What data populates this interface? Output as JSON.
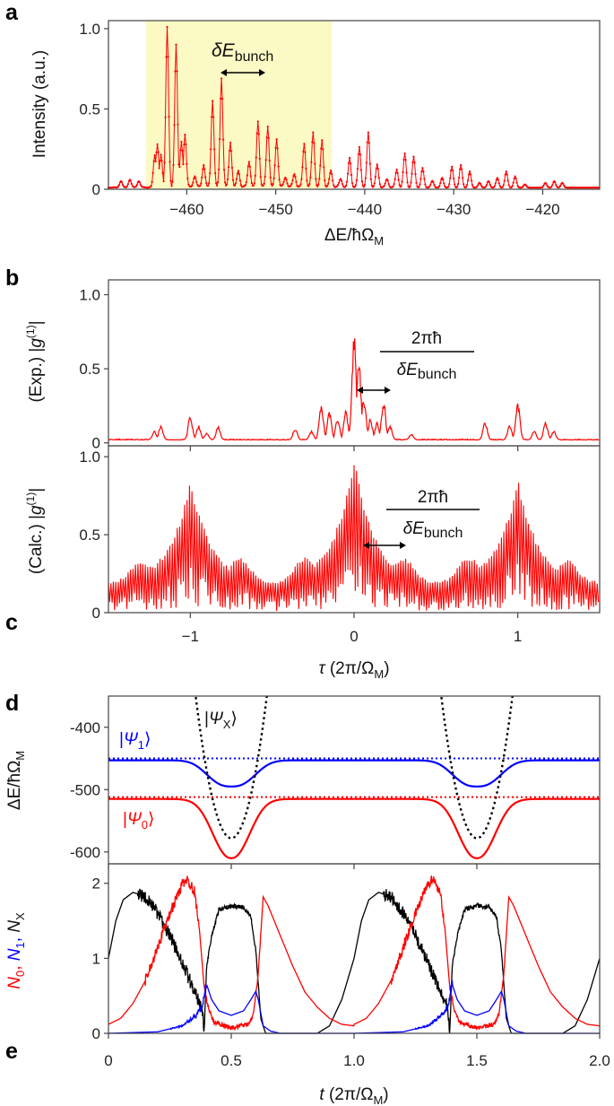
{
  "colors": {
    "red": "#ff0000",
    "blue": "#0000ff",
    "black": "#000000",
    "highlight": "#fbf9c4"
  },
  "panel_letters": {
    "a": "a",
    "b": "b",
    "c": "c",
    "d": "d",
    "e": "e"
  },
  "chart_data": [
    {
      "panel": "a",
      "type": "line",
      "markers": true,
      "xlabel": {
        "main": "ΔE/ħΩ",
        "sub": "M"
      },
      "ylabel": "Intensity (a.u.)",
      "xlim": [
        -468.8,
        -413.6
      ],
      "ylim": [
        0,
        1.05
      ],
      "xticks": [
        -460,
        -450,
        -440,
        -430,
        -420
      ],
      "yticks": [
        {
          "v": 0,
          "t": "0"
        },
        {
          "v": 0.5,
          "t": "0.5"
        },
        {
          "v": 1.0,
          "t": "1.0"
        }
      ],
      "highlight_range": [
        -464.6,
        -443.7
      ],
      "annotation": {
        "main": "δE",
        "sub": "bunch"
      },
      "peaks": [
        [
          -467.4,
          0.04
        ],
        [
          -466.4,
          0.05
        ],
        [
          -465.4,
          0.04
        ],
        [
          -463.6,
          0.2
        ],
        [
          -463.3,
          0.27
        ],
        [
          -462.9,
          0.2
        ],
        [
          -462.2,
          1.0
        ],
        [
          -461.2,
          0.89
        ],
        [
          -460.6,
          0.28
        ],
        [
          -460.2,
          0.33
        ],
        [
          -459.1,
          0.07
        ],
        [
          -458.1,
          0.14
        ],
        [
          -457.1,
          0.54
        ],
        [
          -456.1,
          0.68
        ],
        [
          -455.1,
          0.28
        ],
        [
          -454.2,
          0.1
        ],
        [
          -453.0,
          0.16
        ],
        [
          -452.0,
          0.41
        ],
        [
          -450.9,
          0.38
        ],
        [
          -449.9,
          0.3
        ],
        [
          -448.9,
          0.06
        ],
        [
          -447.9,
          0.08
        ],
        [
          -446.8,
          0.27
        ],
        [
          -445.8,
          0.34
        ],
        [
          -444.8,
          0.29
        ],
        [
          -443.8,
          0.1
        ],
        [
          -442.7,
          0.05
        ],
        [
          -441.7,
          0.18
        ],
        [
          -440.6,
          0.25
        ],
        [
          -439.6,
          0.34
        ],
        [
          -438.6,
          0.14
        ],
        [
          -437.5,
          0.05
        ],
        [
          -436.4,
          0.11
        ],
        [
          -435.5,
          0.21
        ],
        [
          -434.5,
          0.19
        ],
        [
          -433.5,
          0.12
        ],
        [
          -432.4,
          0.04
        ],
        [
          -431.3,
          0.06
        ],
        [
          -430.2,
          0.13
        ],
        [
          -429.2,
          0.14
        ],
        [
          -428.2,
          0.1
        ],
        [
          -427.1,
          0.03
        ],
        [
          -426.1,
          0.04
        ],
        [
          -425.1,
          0.06
        ],
        [
          -424.1,
          0.1
        ],
        [
          -423.1,
          0.07
        ],
        [
          -422.0,
          0.02
        ],
        [
          -419.7,
          0.03
        ],
        [
          -418.7,
          0.04
        ],
        [
          -417.8,
          0.03
        ]
      ]
    },
    {
      "panel": "b",
      "type": "line",
      "ylabel": {
        "pre": "(Exp.) |",
        "g": "g",
        "sup": "(1)",
        "post": "|"
      },
      "xlim": [
        -1.5,
        1.5
      ],
      "ylim": [
        -0.02,
        1.1
      ],
      "yticks": [
        {
          "v": 0,
          "t": "0"
        },
        {
          "v": 0.5,
          "t": "0.5"
        },
        {
          "v": 1.0,
          "t": "1.0"
        }
      ],
      "annotation": {
        "num": "2πħ",
        "den_main": "δE",
        "den_sub": "bunch"
      },
      "baseline": 0.02,
      "peaks": [
        [
          -1.22,
          0.06
        ],
        [
          -1.18,
          0.1
        ],
        [
          -1.0,
          0.17
        ],
        [
          -0.95,
          0.1
        ],
        [
          -0.9,
          0.05
        ],
        [
          -0.83,
          0.09
        ],
        [
          -0.36,
          0.08
        ],
        [
          -0.26,
          0.06
        ],
        [
          -0.2,
          0.25
        ],
        [
          -0.15,
          0.2
        ],
        [
          -0.1,
          0.15
        ],
        [
          -0.05,
          0.2
        ],
        [
          0.0,
          0.74
        ],
        [
          0.03,
          0.55
        ],
        [
          0.06,
          0.3
        ],
        [
          0.1,
          0.15
        ],
        [
          0.14,
          0.12
        ],
        [
          0.18,
          0.27
        ],
        [
          0.22,
          0.1
        ],
        [
          0.35,
          0.04
        ],
        [
          0.8,
          0.13
        ],
        [
          0.95,
          0.1
        ],
        [
          1.0,
          0.27
        ],
        [
          1.1,
          0.06
        ],
        [
          1.17,
          0.12
        ],
        [
          1.22,
          0.06
        ]
      ]
    },
    {
      "panel": "c",
      "type": "line",
      "ylabel": {
        "pre": "(Calc.) |",
        "g": "g",
        "sup": "(1)",
        "post": "|"
      },
      "xlabel": {
        "main": "τ",
        "rest": " (2π/Ω",
        "sub": "M",
        "end": ")"
      },
      "xlim": [
        -1.5,
        1.5
      ],
      "ylim": [
        0,
        1.07
      ],
      "xticks": [
        {
          "v": -1,
          "t": "−1"
        },
        {
          "v": 0,
          "t": "0"
        },
        {
          "v": 1,
          "t": "1"
        }
      ],
      "yticks": [
        {
          "v": 0,
          "t": "0"
        },
        {
          "v": 0.5,
          "t": "0.5"
        },
        {
          "v": 1.0,
          "t": "1.0"
        }
      ],
      "annotation": {
        "num": "2πħ",
        "den_main": "δE",
        "den_sub": "bunch"
      },
      "envelope_baseline": 0.2,
      "envelope_peaks": [
        [
          -1.0,
          0.87
        ],
        [
          0.0,
          1.0
        ],
        [
          1.0,
          0.87
        ]
      ],
      "envelope_bumps": [
        [
          -1.3,
          0.34
        ],
        [
          -0.7,
          0.36
        ],
        [
          -0.3,
          0.36
        ],
        [
          0.3,
          0.36
        ],
        [
          0.7,
          0.36
        ],
        [
          1.3,
          0.34
        ]
      ]
    },
    {
      "panel": "d",
      "type": "line",
      "ylabel": {
        "main": "ΔE/ħΩ",
        "sub": "M"
      },
      "xlim": [
        0,
        2.0
      ],
      "ylim": [
        -619,
        -350
      ],
      "yticks": [
        {
          "v": -400,
          "t": "-400"
        },
        {
          "v": -500,
          "t": "-500"
        },
        {
          "v": -600,
          "t": "-600"
        }
      ],
      "series": [
        {
          "name": {
            "pre": "|",
            "main": "Ψ",
            "sub": "1",
            "post": "⟩"
          },
          "color": "#0000ff",
          "dotted_level": -450,
          "baseline": -453,
          "minimum": -495,
          "minima_t": [
            0.5,
            1.5
          ]
        },
        {
          "name": {
            "pre": "|",
            "main": "Ψ",
            "sub": "0",
            "post": "⟩"
          },
          "color": "#ff0000",
          "dotted_level": -512,
          "baseline": -515,
          "minimum": -610,
          "minima_t": [
            0.5,
            1.5
          ]
        },
        {
          "name": {
            "pre": "|",
            "main": "Ψ",
            "sub": "X",
            "post": "⟩"
          },
          "color": "#000000",
          "style": "dotted",
          "minimum": -578,
          "minima_t": [
            0.5,
            1.5
          ]
        }
      ]
    },
    {
      "panel": "e",
      "type": "line",
      "ylabel": [
        {
          "main": "N",
          "sub": "0",
          "color": "#ff0000"
        },
        {
          "main": "N",
          "sub": "1",
          "color": "#0000ff"
        },
        {
          "main": "N",
          "sub": "X",
          "color": "#000000"
        }
      ],
      "xlabel": {
        "main": "t",
        "rest": " (2π/Ω",
        "sub": "M",
        "end": ")"
      },
      "xlim": [
        0,
        2.0
      ],
      "ylim": [
        0,
        2.26
      ],
      "xticks": [
        {
          "v": 0,
          "t": "0"
        },
        {
          "v": 0.5,
          "t": "0.5"
        },
        {
          "v": 1.0,
          "t": "1.0"
        },
        {
          "v": 1.5,
          "t": "1.5"
        },
        {
          "v": 2.0,
          "t": "2.0"
        }
      ],
      "yticks": [
        {
          "v": 0,
          "t": "0"
        },
        {
          "v": 1,
          "t": "1"
        },
        {
          "v": 2,
          "t": "2"
        }
      ],
      "period": 1.0,
      "series": [
        {
          "name": "N_X",
          "color": "#000000",
          "points": [
            [
              0,
              1.0
            ],
            [
              0.03,
              1.5
            ],
            [
              0.06,
              1.78
            ],
            [
              0.1,
              1.88
            ],
            [
              0.15,
              1.82
            ],
            [
              0.2,
              1.6
            ],
            [
              0.25,
              1.3
            ],
            [
              0.3,
              0.95
            ],
            [
              0.35,
              0.55
            ],
            [
              0.38,
              0.35
            ],
            [
              0.39,
              0.05
            ],
            [
              0.4,
              0.9
            ],
            [
              0.42,
              1.3
            ],
            [
              0.45,
              1.65
            ],
            [
              0.5,
              1.7
            ],
            [
              0.55,
              1.68
            ],
            [
              0.58,
              1.55
            ],
            [
              0.6,
              1.1
            ],
            [
              0.62,
              0.2
            ],
            [
              0.64,
              0
            ],
            [
              0.85,
              0
            ],
            [
              0.9,
              0.1
            ],
            [
              0.95,
              0.45
            ],
            [
              1.0,
              1.0
            ]
          ]
        },
        {
          "name": "N_0",
          "color": "#ff0000",
          "points": [
            [
              0,
              0.12
            ],
            [
              0.05,
              0.2
            ],
            [
              0.1,
              0.4
            ],
            [
              0.15,
              0.7
            ],
            [
              0.2,
              1.15
            ],
            [
              0.25,
              1.6
            ],
            [
              0.3,
              1.98
            ],
            [
              0.32,
              2.05
            ],
            [
              0.35,
              1.9
            ],
            [
              0.37,
              1.4
            ],
            [
              0.39,
              0.6
            ],
            [
              0.41,
              0.3
            ],
            [
              0.43,
              0.15
            ],
            [
              0.5,
              0.07
            ],
            [
              0.57,
              0.12
            ],
            [
              0.59,
              0.25
            ],
            [
              0.61,
              0.8
            ],
            [
              0.63,
              1.82
            ],
            [
              0.65,
              1.7
            ],
            [
              0.7,
              1.3
            ],
            [
              0.75,
              0.9
            ],
            [
              0.8,
              0.55
            ],
            [
              0.85,
              0.35
            ],
            [
              0.9,
              0.2
            ],
            [
              0.95,
              0.12
            ],
            [
              1.0,
              0.1
            ]
          ]
        },
        {
          "name": "N_1",
          "color": "#0000ff",
          "points": [
            [
              0,
              0
            ],
            [
              0.2,
              0.02
            ],
            [
              0.3,
              0.1
            ],
            [
              0.36,
              0.25
            ],
            [
              0.38,
              0.35
            ],
            [
              0.4,
              0.65
            ],
            [
              0.42,
              0.45
            ],
            [
              0.45,
              0.3
            ],
            [
              0.5,
              0.24
            ],
            [
              0.55,
              0.3
            ],
            [
              0.58,
              0.45
            ],
            [
              0.6,
              0.56
            ],
            [
              0.61,
              0.45
            ],
            [
              0.63,
              0.1
            ],
            [
              0.66,
              0.03
            ],
            [
              0.7,
              0
            ],
            [
              1.0,
              0
            ]
          ]
        }
      ]
    }
  ]
}
